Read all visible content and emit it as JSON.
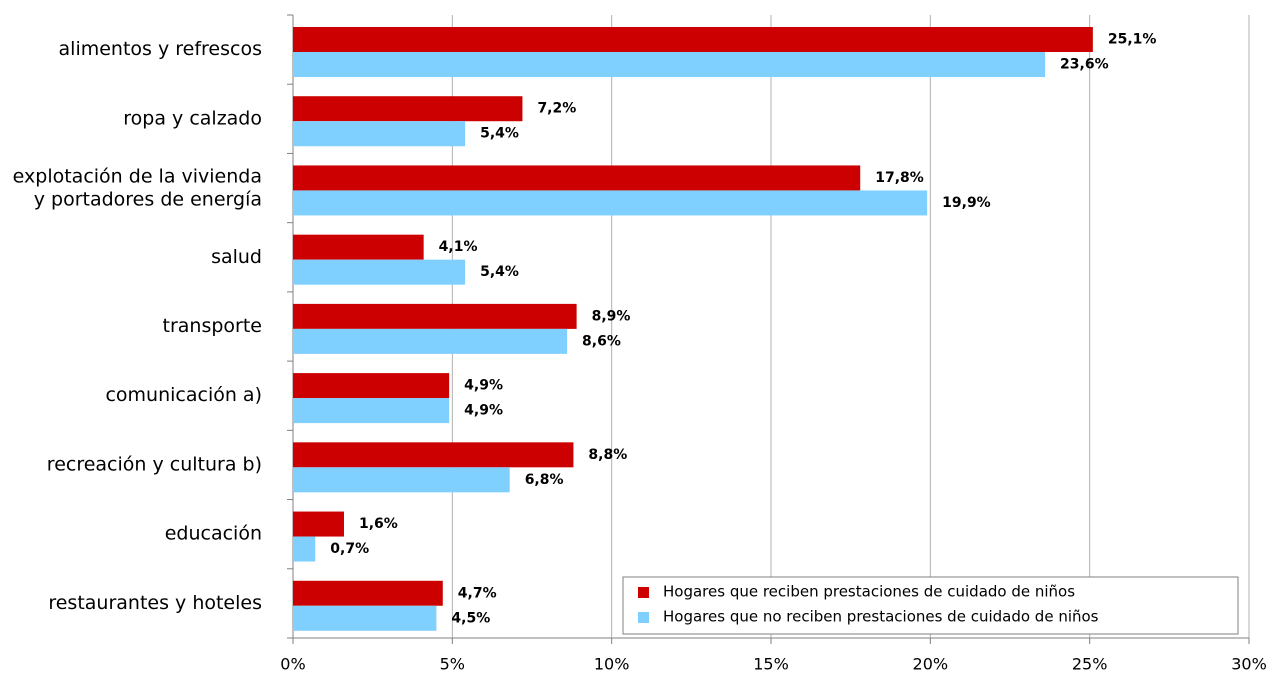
{
  "chart_data": {
    "type": "barh",
    "categories": [
      "alimentos y refrescos",
      "ropa y calzado",
      "explotación de la vivienda\ny portadores de energía",
      "salud",
      "transporte",
      "comunicación a)",
      "recreación y cultura b)",
      "educación",
      "restaurantes y hoteles"
    ],
    "series": [
      {
        "name": "Hogares que reciben prestaciones de cuidado de niños",
        "color": "#cc0000",
        "values": [
          25.1,
          7.2,
          17.8,
          4.1,
          8.9,
          4.9,
          8.8,
          1.6,
          4.7
        ],
        "value_labels": [
          "25,1%",
          "7,2%",
          "17,8%",
          "4,1%",
          "8,9%",
          "4,9%",
          "8,8%",
          "1,6%",
          "4,7%"
        ]
      },
      {
        "name": "Hogares que no reciben prestaciones de cuidado de niños",
        "color": "#80d0ff",
        "values": [
          23.6,
          5.4,
          19.9,
          5.4,
          8.6,
          4.9,
          6.8,
          0.7,
          4.5
        ],
        "value_labels": [
          "23,6%",
          "5,4%",
          "19,9%",
          "5,4%",
          "8,6%",
          "4,9%",
          "6,8%",
          "0,7%",
          "4,5%"
        ]
      }
    ],
    "xlim": [
      0,
      30
    ],
    "xticks": [
      {
        "value": 0,
        "label": "0%"
      },
      {
        "value": 5,
        "label": "5%"
      },
      {
        "value": 10,
        "label": "10%"
      },
      {
        "value": 15,
        "label": "15%"
      },
      {
        "value": 20,
        "label": "20%"
      },
      {
        "value": 25,
        "label": "25%"
      },
      {
        "value": 30,
        "label": "30%"
      }
    ],
    "grid": true,
    "legend": "lower right"
  }
}
